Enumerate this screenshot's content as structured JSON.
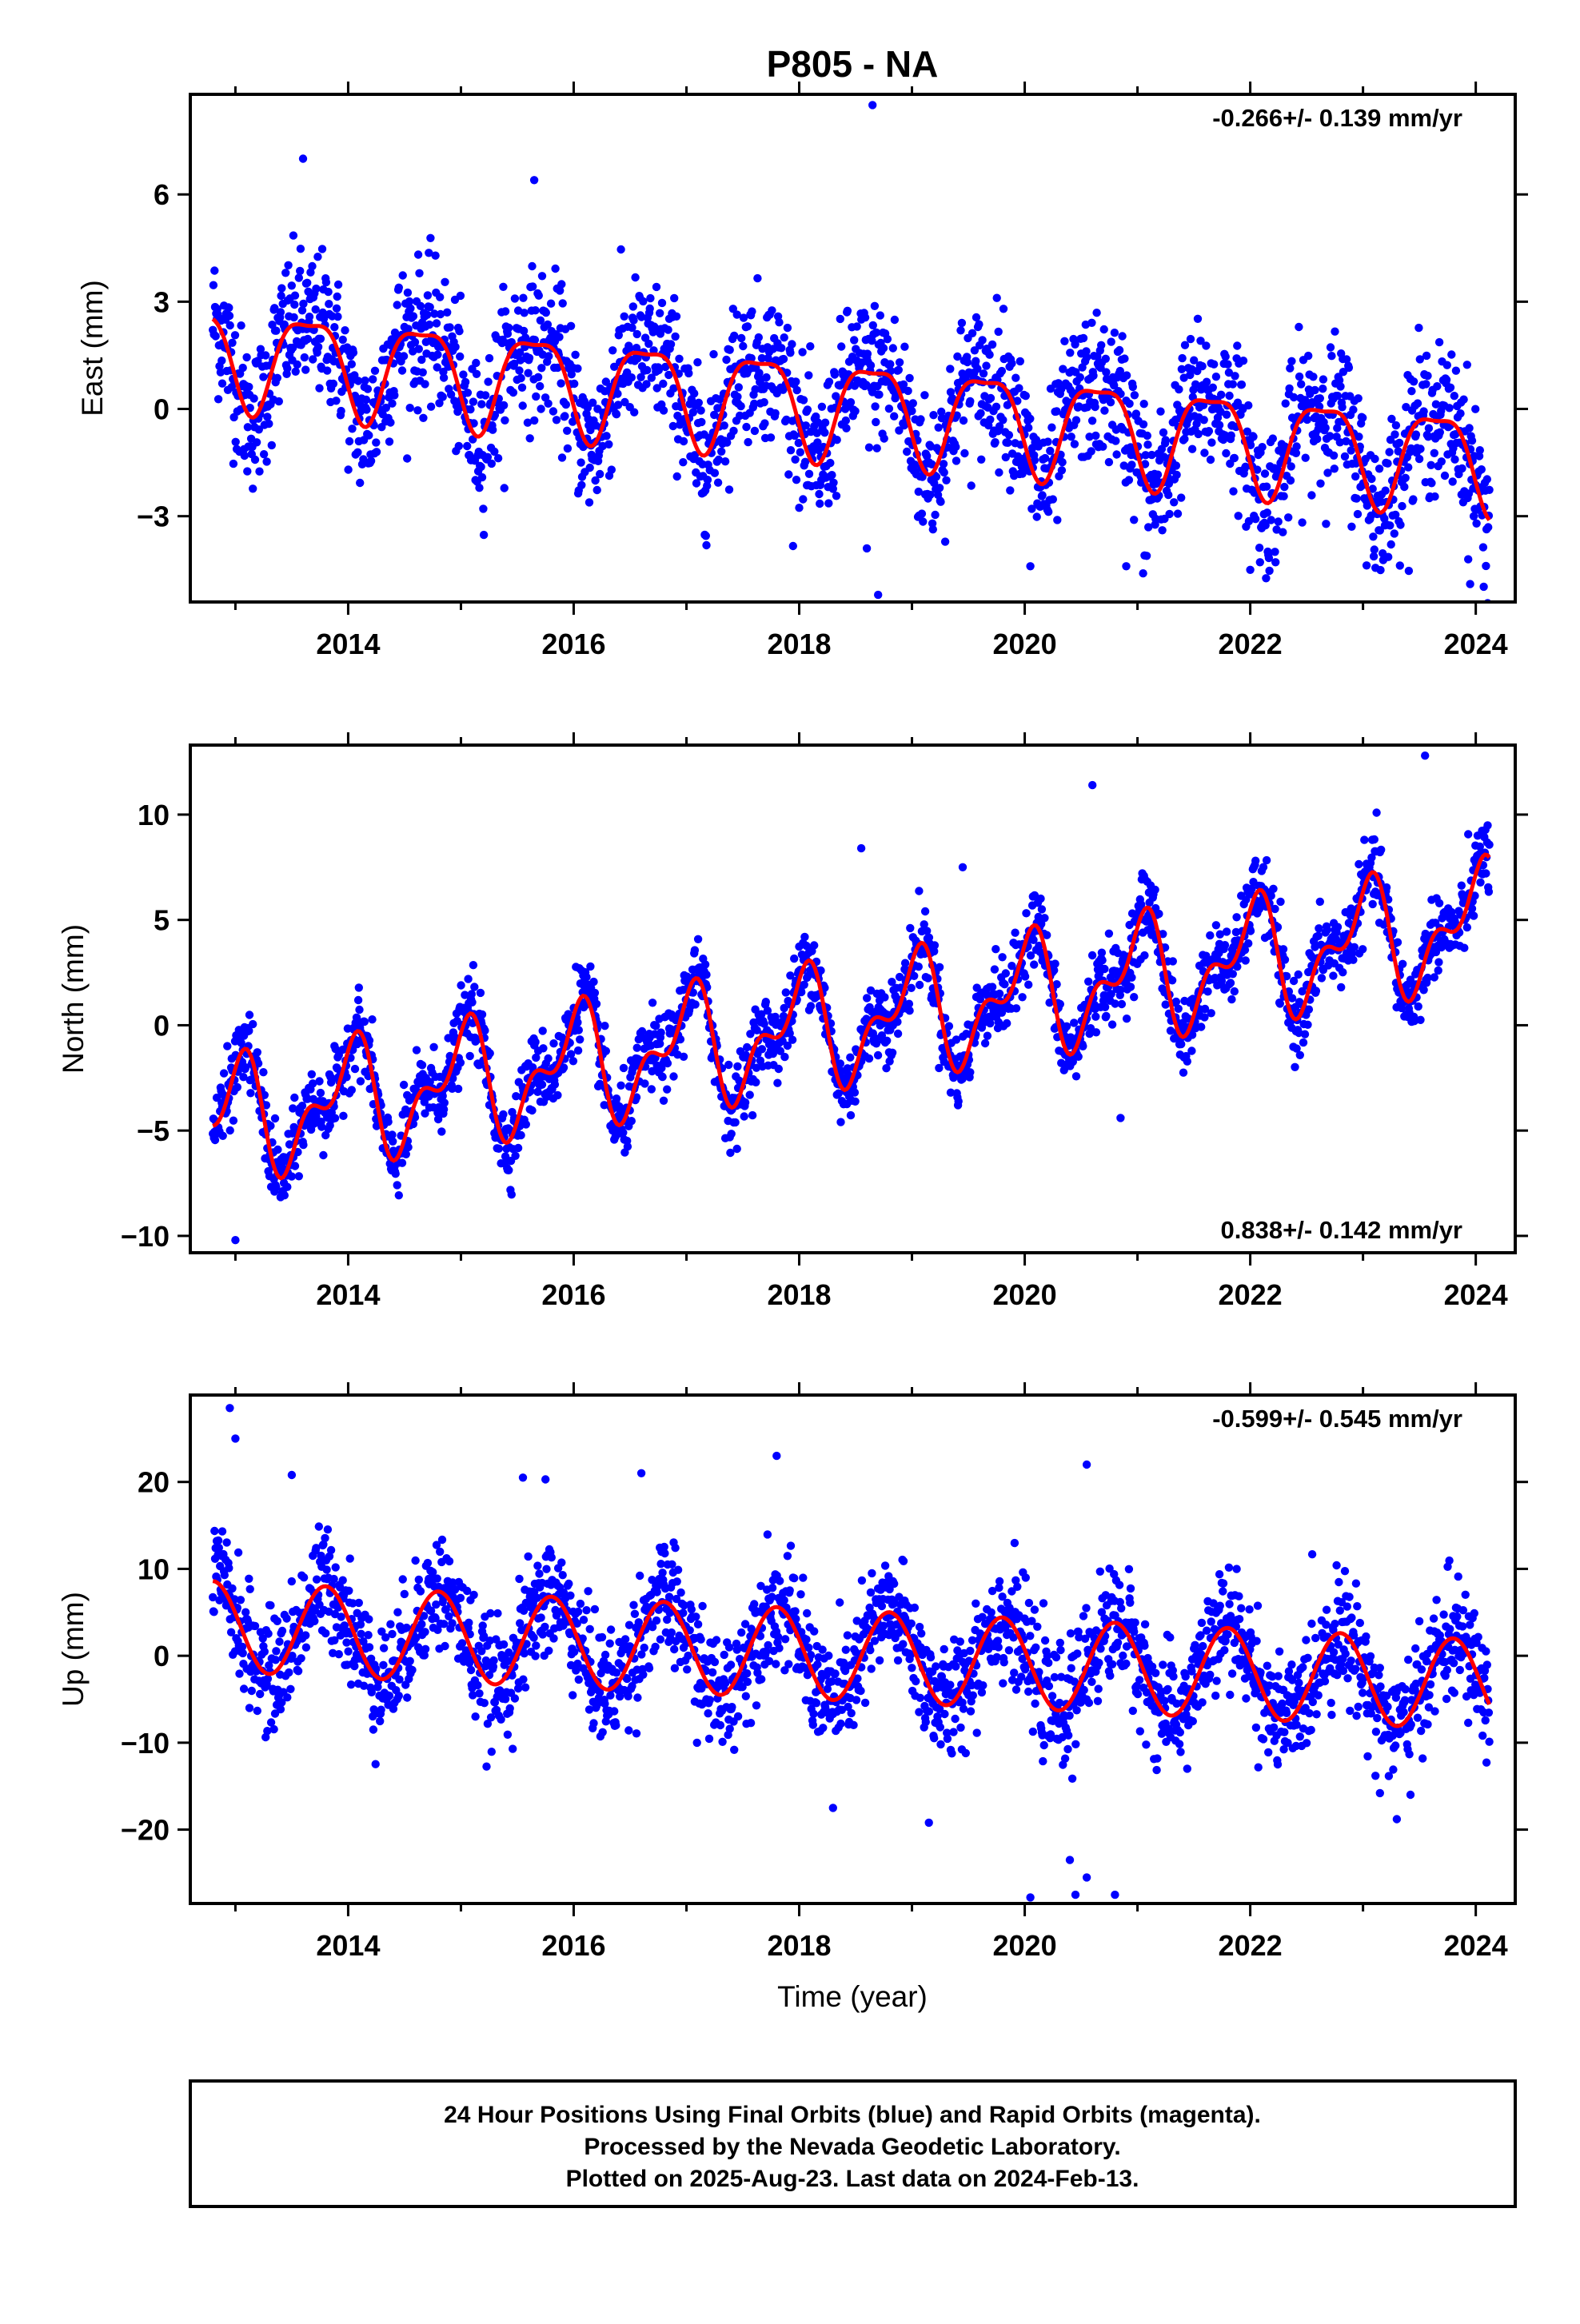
{
  "title": "P805 - NA",
  "xlabel": "Time (year)",
  "footer": {
    "line1": "24 Hour Positions Using Final Orbits (blue) and Rapid Orbits (magenta).",
    "line2": "Processed by the Nevada Geodetic Laboratory.",
    "line3": "Plotted on 2025-Aug-23. Last data on 2024-Feb-13."
  },
  "colors": {
    "points": "#0000ff",
    "fit": "#ff0000",
    "frame": "#000000"
  },
  "chart_data": [
    {
      "type": "scatter",
      "ylabel": "East (mm)",
      "rate_label": "-0.266+/- 0.139 mm/yr",
      "rate_position": "top-right",
      "xlim": [
        2012.6,
        2024.35
      ],
      "ylim": [
        -5.4,
        8.8
      ],
      "xticks": [
        2014,
        2016,
        2018,
        2020,
        2022,
        2024
      ],
      "xtick_labels": [
        "2014",
        "2016",
        "2018",
        "2020",
        "2022",
        "2024"
      ],
      "yticks": [
        -3,
        0,
        3,
        6
      ],
      "ytick_labels": [
        "−3",
        "0",
        "3",
        "6"
      ],
      "fit_model": {
        "start": 2012.8,
        "end": 2024.12,
        "offset": 1.6,
        "slope": -0.266,
        "annual_amp": 1.35,
        "annual_phase": 2013.65,
        "semiannual_amp": 0.4,
        "semiannual_phase": 2013.4
      },
      "point_scatter_sd": 1.0,
      "outliers": [
        [
          2018.65,
          8.5
        ],
        [
          2018.7,
          -5.2
        ],
        [
          2013.6,
          7.0
        ],
        [
          2015.65,
          6.4
        ],
        [
          2018.6,
          -3.9
        ],
        [
          2020.05,
          -4.4
        ],
        [
          2020.9,
          -4.4
        ],
        [
          2021.05,
          -4.6
        ],
        [
          2022.0,
          -4.5
        ],
        [
          2023.95,
          -4.9
        ]
      ]
    },
    {
      "type": "scatter",
      "ylabel": "North (mm)",
      "rate_label": "0.838+/- 0.142 mm/yr",
      "rate_position": "bottom-right",
      "xlim": [
        2012.6,
        2024.35
      ],
      "ylim": [
        -10.8,
        13.3
      ],
      "xticks": [
        2014,
        2016,
        2018,
        2020,
        2022,
        2024
      ],
      "xtick_labels": [
        "2014",
        "2016",
        "2018",
        "2020",
        "2022",
        "2024"
      ],
      "yticks": [
        -10,
        -5,
        0,
        5,
        10
      ],
      "ytick_labels": [
        "−10",
        "−5",
        "0",
        "5",
        "10"
      ],
      "fit_model": {
        "start": 2012.8,
        "end": 2024.12,
        "offset": -4.6,
        "slope": 0.838,
        "annual_amp": 2.3,
        "annual_phase": 2013.0,
        "semiannual_amp": 1.4,
        "semiannual_phase": 2013.62
      },
      "point_scatter_sd": 0.9,
      "outliers": [
        [
          2013.0,
          -10.2
        ],
        [
          2023.55,
          12.8
        ],
        [
          2020.6,
          11.4
        ],
        [
          2018.55,
          8.4
        ],
        [
          2019.45,
          7.5
        ],
        [
          2020.85,
          -4.4
        ]
      ]
    },
    {
      "type": "scatter",
      "ylabel": "Up (mm)",
      "rate_label": "-0.599+/- 0.545 mm/yr",
      "rate_position": "top-right",
      "xlim": [
        2012.6,
        2024.35
      ],
      "ylim": [
        -28.5,
        30.0
      ],
      "xticks": [
        2014,
        2016,
        2018,
        2020,
        2022,
        2024
      ],
      "xtick_labels": [
        "2014",
        "2016",
        "2018",
        "2020",
        "2022",
        "2024"
      ],
      "yticks": [
        -20,
        -10,
        0,
        10,
        20
      ],
      "ytick_labels": [
        "−20",
        "−10",
        "0",
        "10",
        "20"
      ],
      "fit_model": {
        "start": 2012.8,
        "end": 2024.12,
        "offset": 3.4,
        "slope": -0.599,
        "annual_amp": 5.2,
        "annual_phase": 2012.8,
        "semiannual_amp": 0.0,
        "semiannual_phase": 2013.0
      },
      "point_scatter_sd": 3.3,
      "outliers": [
        [
          2012.95,
          28.5
        ],
        [
          2013.0,
          25.0
        ],
        [
          2017.8,
          23.0
        ],
        [
          2020.55,
          22.0
        ],
        [
          2016.6,
          21.0
        ],
        [
          2013.5,
          20.8
        ],
        [
          2015.55,
          20.5
        ],
        [
          2015.75,
          20.3
        ],
        [
          2020.05,
          -27.8
        ],
        [
          2020.45,
          -27.5
        ],
        [
          2020.8,
          -27.5
        ],
        [
          2020.4,
          -23.5
        ],
        [
          2020.55,
          -25.5
        ],
        [
          2019.15,
          -19.2
        ],
        [
          2023.3,
          -18.8
        ],
        [
          2018.3,
          -17.5
        ],
        [
          2023.15,
          -15.8
        ]
      ]
    }
  ]
}
